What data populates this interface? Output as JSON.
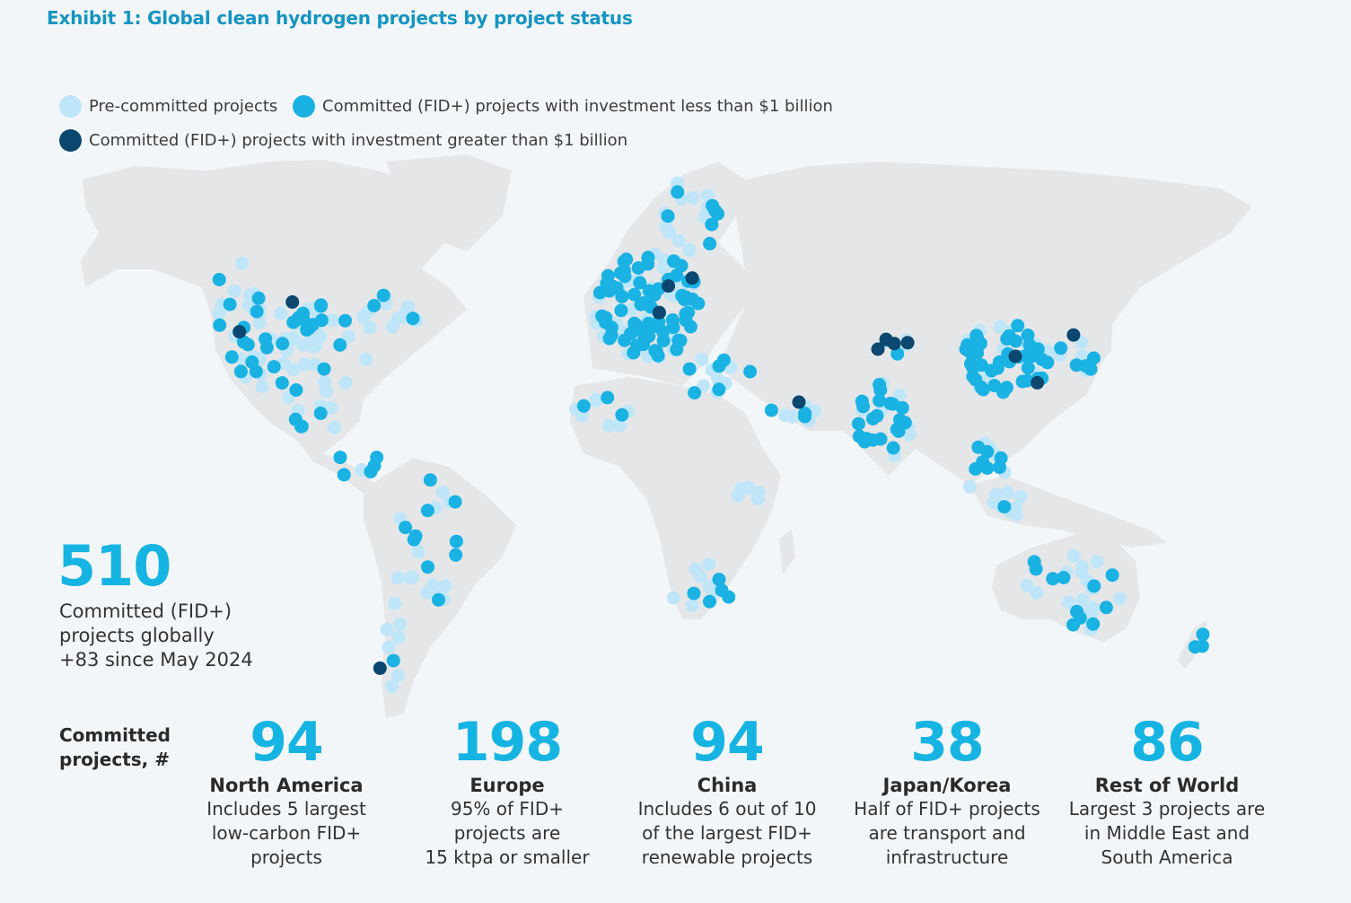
{
  "title": "Exhibit 1: Global clean hydrogen projects by project status",
  "legend": [
    {
      "label": "Pre-committed projects",
      "color": "#bfe6f8"
    },
    {
      "label": "Committed (FID+) projects with investment less than $1 billion",
      "color": "#19b2e3"
    },
    {
      "label": "Committed (FID+) projects with investment greater than $1 billion",
      "color": "#0b476f"
    }
  ],
  "total": {
    "value": "510",
    "lines": [
      "Committed (FID+)",
      "projects globally",
      "+83 since May 2024"
    ]
  },
  "committed_label": [
    "Committed",
    "projects, #"
  ],
  "regions": [
    {
      "value": "94",
      "name": "North America",
      "desc": [
        "Includes 5 largest",
        "low-carbon FID+",
        "projects"
      ]
    },
    {
      "value": "198",
      "name": "Europe",
      "desc": [
        "95% of FID+",
        "projects are",
        "15 ktpa or smaller"
      ]
    },
    {
      "value": "94",
      "name": "China",
      "desc": [
        "Includes 6 out of 10",
        "of the largest FID+",
        "renewable projects"
      ]
    },
    {
      "value": "38",
      "name": "Japan/Korea",
      "desc": [
        "Half of FID+ projects",
        "are transport and",
        "infrastructure"
      ]
    },
    {
      "value": "86",
      "name": "Rest of World",
      "desc": [
        "Largest 3 projects are",
        "in Middle East and",
        "South America"
      ]
    }
  ]
}
